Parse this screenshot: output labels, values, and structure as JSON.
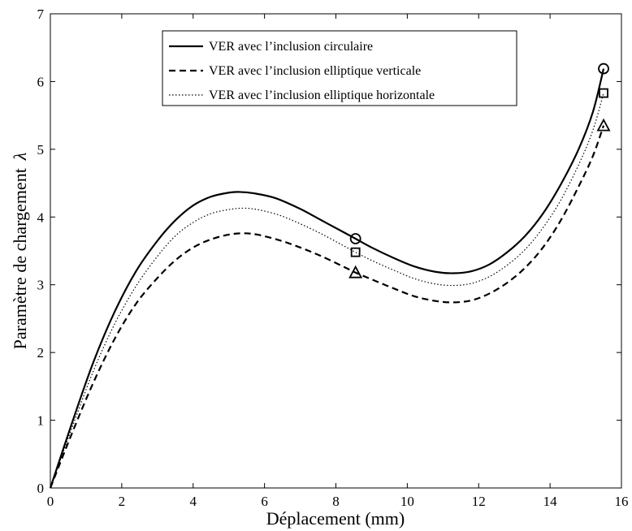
{
  "chart_data": {
    "type": "line",
    "xlabel": "Déplacement (mm)",
    "ylabel": "Paramètre de chargement",
    "ylabel_symbol": "λ",
    "xlim": [
      0,
      16
    ],
    "ylim": [
      0,
      7
    ],
    "xticks": [
      0,
      2,
      4,
      6,
      8,
      10,
      12,
      14,
      16
    ],
    "yticks": [
      0,
      1,
      2,
      3,
      4,
      5,
      6,
      7
    ],
    "grid": false,
    "legend_position": "top-center",
    "series": [
      {
        "name": "VER avec l’inclusion circulaire",
        "style": "solid",
        "marker": "circle",
        "marker_points": [
          [
            8.55,
            3.68
          ],
          [
            15.5,
            6.19
          ]
        ],
        "points": [
          [
            0,
            0
          ],
          [
            0.6,
            0.95
          ],
          [
            1.2,
            1.85
          ],
          [
            1.8,
            2.6
          ],
          [
            2.4,
            3.2
          ],
          [
            3.0,
            3.65
          ],
          [
            3.5,
            3.95
          ],
          [
            4.0,
            4.17
          ],
          [
            4.5,
            4.3
          ],
          [
            5.0,
            4.36
          ],
          [
            5.3,
            4.37
          ],
          [
            5.7,
            4.35
          ],
          [
            6.3,
            4.28
          ],
          [
            7.0,
            4.12
          ],
          [
            7.6,
            3.95
          ],
          [
            8.2,
            3.78
          ],
          [
            8.55,
            3.68
          ],
          [
            9.0,
            3.55
          ],
          [
            9.6,
            3.4
          ],
          [
            10.2,
            3.27
          ],
          [
            10.8,
            3.19
          ],
          [
            11.3,
            3.17
          ],
          [
            11.8,
            3.2
          ],
          [
            12.3,
            3.3
          ],
          [
            12.8,
            3.48
          ],
          [
            13.3,
            3.72
          ],
          [
            13.8,
            4.05
          ],
          [
            14.3,
            4.48
          ],
          [
            14.8,
            5.0
          ],
          [
            15.2,
            5.55
          ],
          [
            15.5,
            6.19
          ]
        ]
      },
      {
        "name": "VER avec l’inclusion elliptique verticale",
        "style": "dashed",
        "marker": "triangle",
        "marker_points": [
          [
            8.55,
            3.18
          ],
          [
            15.5,
            5.35
          ]
        ],
        "points": [
          [
            0,
            0
          ],
          [
            0.6,
            0.8
          ],
          [
            1.2,
            1.55
          ],
          [
            1.8,
            2.2
          ],
          [
            2.4,
            2.72
          ],
          [
            3.0,
            3.1
          ],
          [
            3.5,
            3.36
          ],
          [
            4.0,
            3.55
          ],
          [
            4.5,
            3.67
          ],
          [
            5.0,
            3.74
          ],
          [
            5.4,
            3.76
          ],
          [
            5.8,
            3.74
          ],
          [
            6.4,
            3.66
          ],
          [
            7.0,
            3.55
          ],
          [
            7.6,
            3.42
          ],
          [
            8.2,
            3.27
          ],
          [
            8.55,
            3.18
          ],
          [
            9.0,
            3.08
          ],
          [
            9.6,
            2.95
          ],
          [
            10.2,
            2.83
          ],
          [
            10.8,
            2.76
          ],
          [
            11.3,
            2.74
          ],
          [
            11.8,
            2.77
          ],
          [
            12.3,
            2.87
          ],
          [
            12.8,
            3.03
          ],
          [
            13.3,
            3.25
          ],
          [
            13.8,
            3.55
          ],
          [
            14.3,
            3.95
          ],
          [
            14.8,
            4.45
          ],
          [
            15.2,
            4.9
          ],
          [
            15.5,
            5.35
          ]
        ]
      },
      {
        "name": "VER avec l’inclusion elliptique horizontale",
        "style": "dotted",
        "marker": "square",
        "marker_points": [
          [
            8.55,
            3.48
          ],
          [
            15.5,
            5.83
          ]
        ],
        "points": [
          [
            0,
            0
          ],
          [
            0.6,
            0.88
          ],
          [
            1.2,
            1.72
          ],
          [
            1.8,
            2.42
          ],
          [
            2.4,
            2.98
          ],
          [
            3.0,
            3.42
          ],
          [
            3.5,
            3.72
          ],
          [
            4.0,
            3.92
          ],
          [
            4.5,
            4.05
          ],
          [
            5.0,
            4.11
          ],
          [
            5.4,
            4.13
          ],
          [
            5.8,
            4.11
          ],
          [
            6.4,
            4.03
          ],
          [
            7.0,
            3.9
          ],
          [
            7.6,
            3.75
          ],
          [
            8.2,
            3.58
          ],
          [
            8.55,
            3.48
          ],
          [
            9.0,
            3.36
          ],
          [
            9.6,
            3.22
          ],
          [
            10.2,
            3.09
          ],
          [
            10.8,
            3.01
          ],
          [
            11.3,
            2.99
          ],
          [
            11.8,
            3.02
          ],
          [
            12.3,
            3.12
          ],
          [
            12.8,
            3.29
          ],
          [
            13.3,
            3.52
          ],
          [
            13.8,
            3.84
          ],
          [
            14.3,
            4.25
          ],
          [
            14.8,
            4.77
          ],
          [
            15.2,
            5.28
          ],
          [
            15.5,
            5.83
          ]
        ]
      }
    ]
  }
}
